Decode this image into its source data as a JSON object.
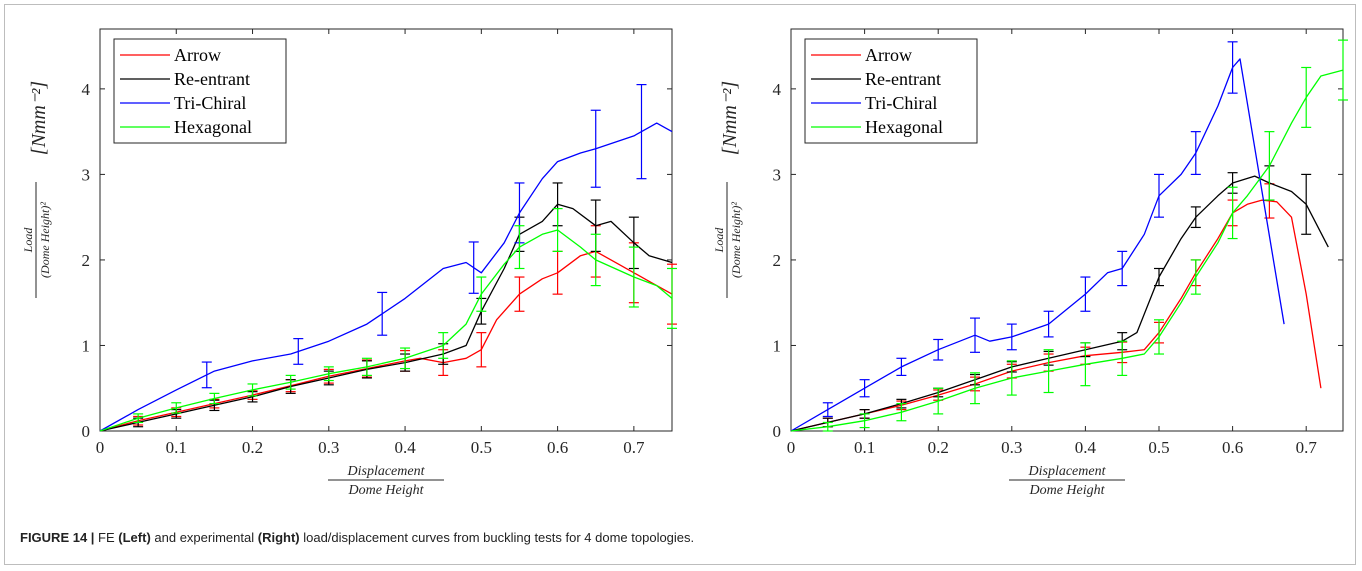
{
  "caption": {
    "label": "FIGURE 14 |",
    "part1": " FE ",
    "left_word": "(Left)",
    "part2": " and experimental ",
    "right_word": "(Right)",
    "part3": " load/displacement curves from buckling tests for 4 dome topologies."
  },
  "colors": {
    "Arrow": "#ff0000",
    "Re-entrant": "#000000",
    "Tri-Chiral": "#0000ff",
    "Hexagonal": "#00ff00"
  },
  "chart_data": [
    {
      "type": "line",
      "panel": "Left",
      "xlabel_num": "Displacement",
      "xlabel_den": "Dome Height",
      "ylabel_num": "Load",
      "ylabel_den": "(Dome Height)²",
      "ylabel_unit": "[Nmm⁻²]",
      "xlim": [
        0,
        0.75
      ],
      "ylim": [
        0,
        4.7
      ],
      "xticks": [
        "0",
        "0.1",
        "0.2",
        "0.3",
        "0.4",
        "0.5",
        "0.6",
        "0.7"
      ],
      "yticks": [
        "0",
        "1",
        "2",
        "3",
        "4"
      ],
      "legend_position": "top-left",
      "series": [
        {
          "name": "Arrow",
          "x": [
            0,
            0.05,
            0.1,
            0.15,
            0.2,
            0.25,
            0.3,
            0.35,
            0.4,
            0.42,
            0.45,
            0.48,
            0.5,
            0.52,
            0.55,
            0.58,
            0.6,
            0.63,
            0.65,
            0.68,
            0.7,
            0.72,
            0.75
          ],
          "y": [
            0,
            0.12,
            0.22,
            0.32,
            0.42,
            0.53,
            0.64,
            0.73,
            0.82,
            0.85,
            0.8,
            0.85,
            0.95,
            1.3,
            1.6,
            1.78,
            1.85,
            2.05,
            2.1,
            1.95,
            1.85,
            1.75,
            1.6
          ],
          "err_x": [
            0.05,
            0.1,
            0.15,
            0.2,
            0.25,
            0.3,
            0.35,
            0.4,
            0.45,
            0.5,
            0.55,
            0.6,
            0.65,
            0.7,
            0.75
          ],
          "err_h": [
            0.05,
            0.05,
            0.05,
            0.05,
            0.07,
            0.08,
            0.1,
            0.12,
            0.15,
            0.2,
            0.2,
            0.25,
            0.3,
            0.35,
            0.35
          ]
        },
        {
          "name": "Re-entrant",
          "x": [
            0,
            0.05,
            0.1,
            0.15,
            0.2,
            0.25,
            0.3,
            0.35,
            0.4,
            0.45,
            0.48,
            0.5,
            0.53,
            0.55,
            0.58,
            0.6,
            0.62,
            0.65,
            0.67,
            0.7,
            0.72,
            0.75
          ],
          "y": [
            0,
            0.1,
            0.2,
            0.3,
            0.4,
            0.52,
            0.62,
            0.72,
            0.8,
            0.9,
            1.0,
            1.4,
            1.9,
            2.3,
            2.45,
            2.65,
            2.6,
            2.4,
            2.45,
            2.2,
            2.05,
            1.97
          ],
          "err_x": [
            0.05,
            0.1,
            0.15,
            0.2,
            0.25,
            0.3,
            0.35,
            0.4,
            0.45,
            0.5,
            0.55,
            0.6,
            0.65,
            0.7
          ],
          "err_h": [
            0.05,
            0.05,
            0.06,
            0.06,
            0.08,
            0.08,
            0.1,
            0.1,
            0.12,
            0.15,
            0.2,
            0.25,
            0.3,
            0.3
          ]
        },
        {
          "name": "Tri-Chiral",
          "x": [
            0,
            0.05,
            0.1,
            0.15,
            0.2,
            0.25,
            0.3,
            0.35,
            0.4,
            0.45,
            0.48,
            0.5,
            0.53,
            0.55,
            0.58,
            0.6,
            0.63,
            0.65,
            0.7,
            0.73,
            0.75
          ],
          "y": [
            0,
            0.25,
            0.48,
            0.7,
            0.82,
            0.9,
            1.05,
            1.25,
            1.55,
            1.9,
            1.97,
            1.85,
            2.2,
            2.55,
            2.95,
            3.15,
            3.25,
            3.3,
            3.45,
            3.6,
            3.5
          ],
          "err_x": [
            0.14,
            0.26,
            0.37,
            0.49,
            0.55,
            0.65,
            0.71
          ],
          "err_h": [
            0.15,
            0.15,
            0.25,
            0.3,
            0.35,
            0.45,
            0.55
          ]
        },
        {
          "name": "Hexagonal",
          "x": [
            0,
            0.05,
            0.1,
            0.15,
            0.2,
            0.25,
            0.3,
            0.35,
            0.4,
            0.45,
            0.48,
            0.5,
            0.53,
            0.55,
            0.58,
            0.6,
            0.63,
            0.65,
            0.7,
            0.73,
            0.75
          ],
          "y": [
            0,
            0.15,
            0.27,
            0.38,
            0.48,
            0.57,
            0.67,
            0.75,
            0.85,
            1.0,
            1.25,
            1.6,
            1.95,
            2.15,
            2.3,
            2.35,
            2.15,
            2.0,
            1.8,
            1.7,
            1.55
          ],
          "err_x": [
            0.05,
            0.1,
            0.15,
            0.2,
            0.25,
            0.3,
            0.35,
            0.4,
            0.45,
            0.5,
            0.55,
            0.6,
            0.65,
            0.7,
            0.75
          ],
          "err_h": [
            0.05,
            0.06,
            0.06,
            0.07,
            0.08,
            0.08,
            0.1,
            0.12,
            0.15,
            0.2,
            0.25,
            0.25,
            0.3,
            0.35,
            0.35
          ]
        }
      ]
    },
    {
      "type": "line",
      "panel": "Right",
      "xlabel_num": "Displacement",
      "xlabel_den": "Dome Height",
      "ylabel_num": "Load",
      "ylabel_den": "(Dome Height)²",
      "ylabel_unit": "[Nmm⁻²]",
      "xlim": [
        0,
        0.75
      ],
      "ylim": [
        0,
        4.7
      ],
      "xticks": [
        "0",
        "0.1",
        "0.2",
        "0.3",
        "0.4",
        "0.5",
        "0.6",
        "0.7"
      ],
      "yticks": [
        "0",
        "1",
        "2",
        "3",
        "4"
      ],
      "legend_position": "top-left",
      "series": [
        {
          "name": "Arrow",
          "x": [
            0,
            0.05,
            0.1,
            0.15,
            0.2,
            0.25,
            0.3,
            0.35,
            0.4,
            0.45,
            0.48,
            0.5,
            0.53,
            0.55,
            0.58,
            0.6,
            0.62,
            0.64,
            0.66,
            0.68,
            0.7,
            0.72
          ],
          "y": [
            0,
            0.1,
            0.2,
            0.3,
            0.42,
            0.55,
            0.7,
            0.8,
            0.88,
            0.92,
            0.95,
            1.15,
            1.55,
            1.85,
            2.25,
            2.55,
            2.65,
            2.7,
            2.68,
            2.5,
            1.6,
            0.5
          ],
          "err_x": [
            0.05,
            0.1,
            0.15,
            0.2,
            0.25,
            0.3,
            0.35,
            0.4,
            0.45,
            0.5,
            0.55,
            0.6,
            0.65
          ],
          "err_h": [
            0.05,
            0.05,
            0.05,
            0.06,
            0.08,
            0.08,
            0.1,
            0.1,
            0.12,
            0.12,
            0.15,
            0.15,
            0.2
          ]
        },
        {
          "name": "Re-entrant",
          "x": [
            0,
            0.05,
            0.1,
            0.15,
            0.2,
            0.25,
            0.3,
            0.35,
            0.4,
            0.45,
            0.47,
            0.5,
            0.53,
            0.55,
            0.58,
            0.6,
            0.63,
            0.65,
            0.68,
            0.7,
            0.73
          ],
          "y": [
            0,
            0.1,
            0.2,
            0.32,
            0.45,
            0.6,
            0.75,
            0.85,
            0.95,
            1.05,
            1.15,
            1.8,
            2.25,
            2.5,
            2.75,
            2.9,
            2.98,
            2.9,
            2.8,
            2.65,
            2.15
          ],
          "err_x": [
            0.05,
            0.1,
            0.15,
            0.2,
            0.25,
            0.3,
            0.35,
            0.4,
            0.45,
            0.5,
            0.55,
            0.6,
            0.65,
            0.7
          ],
          "err_h": [
            0.05,
            0.05,
            0.05,
            0.05,
            0.06,
            0.06,
            0.08,
            0.08,
            0.1,
            0.1,
            0.12,
            0.12,
            0.2,
            0.35
          ]
        },
        {
          "name": "Tri-Chiral",
          "x": [
            0,
            0.05,
            0.1,
            0.15,
            0.2,
            0.25,
            0.27,
            0.3,
            0.35,
            0.4,
            0.43,
            0.45,
            0.48,
            0.5,
            0.53,
            0.55,
            0.58,
            0.6,
            0.61,
            0.64,
            0.67
          ],
          "y": [
            0,
            0.25,
            0.5,
            0.75,
            0.95,
            1.12,
            1.05,
            1.1,
            1.25,
            1.6,
            1.85,
            1.9,
            2.3,
            2.75,
            3.0,
            3.25,
            3.8,
            4.25,
            4.35,
            2.8,
            1.25
          ],
          "err_x": [
            0.05,
            0.1,
            0.15,
            0.2,
            0.25,
            0.3,
            0.35,
            0.4,
            0.45,
            0.5,
            0.55,
            0.6
          ],
          "err_h": [
            0.08,
            0.1,
            0.1,
            0.12,
            0.2,
            0.15,
            0.15,
            0.2,
            0.2,
            0.25,
            0.25,
            0.3
          ]
        },
        {
          "name": "Hexagonal",
          "x": [
            0,
            0.05,
            0.1,
            0.15,
            0.2,
            0.25,
            0.3,
            0.35,
            0.4,
            0.45,
            0.48,
            0.5,
            0.53,
            0.55,
            0.58,
            0.6,
            0.62,
            0.65,
            0.68,
            0.7,
            0.72,
            0.75
          ],
          "y": [
            0,
            0.05,
            0.12,
            0.22,
            0.35,
            0.5,
            0.62,
            0.7,
            0.78,
            0.85,
            0.9,
            1.1,
            1.5,
            1.8,
            2.2,
            2.55,
            2.75,
            3.1,
            3.6,
            3.9,
            4.15,
            4.22
          ],
          "err_x": [
            0.05,
            0.1,
            0.15,
            0.2,
            0.25,
            0.3,
            0.35,
            0.4,
            0.45,
            0.5,
            0.55,
            0.6,
            0.65,
            0.7,
            0.75
          ],
          "err_h": [
            0.05,
            0.08,
            0.1,
            0.15,
            0.18,
            0.2,
            0.25,
            0.25,
            0.2,
            0.2,
            0.2,
            0.3,
            0.4,
            0.35,
            0.35
          ]
        }
      ]
    }
  ]
}
